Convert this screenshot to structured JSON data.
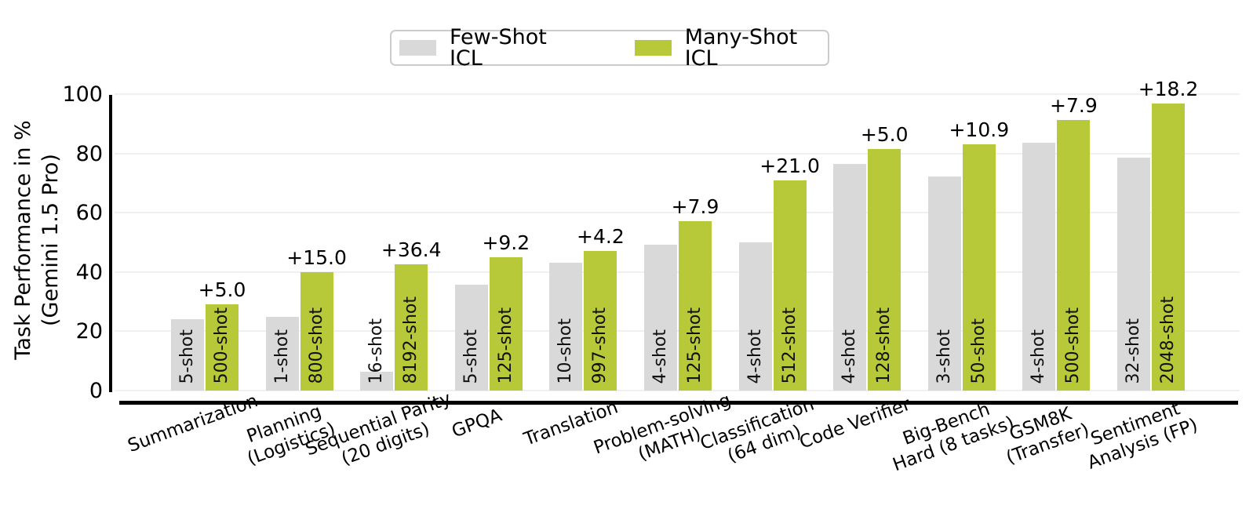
{
  "legend": {
    "items": [
      {
        "label": "Few-Shot ICL",
        "color": "#d9d9d9"
      },
      {
        "label": "Many-Shot ICL",
        "color": "#b7c838"
      }
    ]
  },
  "y_axis": {
    "label_line1": "Task Performance in %",
    "label_line2": "(Gemini 1.5 Pro)",
    "ticks": [
      "0",
      "20",
      "40",
      "60",
      "80",
      "100"
    ]
  },
  "colors": {
    "few_shot": "#d9d9d9",
    "many_shot": "#b7c838",
    "grid": "#f0f0f0",
    "axis": "#000000",
    "text": "#000000"
  },
  "chart_data": {
    "type": "bar",
    "title": "",
    "xlabel": "",
    "ylabel": "Task Performance in % (Gemini 1.5 Pro)",
    "ylim": [
      0,
      100
    ],
    "grid": true,
    "legend_position": "top-center",
    "series_names": [
      "Few-Shot ICL",
      "Many-Shot ICL"
    ],
    "categories": [
      "Summarization",
      "Planning (Logistics)",
      "Sequential Parity (20 digits)",
      "GPQA",
      "Translation",
      "Problem-solving (MATH)",
      "Classification (64 dim)",
      "Code Verifier",
      "Big-Bench Hard (8 tasks)",
      "GSM8K (Transfer)",
      "Sentiment Analysis (FP)"
    ],
    "groups": [
      {
        "category_lines": [
          "Summarization"
        ],
        "few": {
          "label": "5-shot",
          "value": 24.0
        },
        "many": {
          "label": "500-shot",
          "value": 29.0
        },
        "delta": "+5.0"
      },
      {
        "category_lines": [
          "Planning",
          "(Logistics)"
        ],
        "few": {
          "label": "1-shot",
          "value": 25.0
        },
        "many": {
          "label": "800-shot",
          "value": 40.0
        },
        "delta": "+15.0"
      },
      {
        "category_lines": [
          "Sequential Parity",
          "(20 digits)"
        ],
        "few": {
          "label": "16-shot",
          "value": 6.3
        },
        "many": {
          "label": "8192-shot",
          "value": 42.7
        },
        "delta": "+36.4"
      },
      {
        "category_lines": [
          "GPQA"
        ],
        "few": {
          "label": "5-shot",
          "value": 35.7
        },
        "many": {
          "label": "125-shot",
          "value": 44.9
        },
        "delta": "+9.2"
      },
      {
        "category_lines": [
          "Translation"
        ],
        "few": {
          "label": "10-shot",
          "value": 43.0
        },
        "many": {
          "label": "997-shot",
          "value": 47.2
        },
        "delta": "+4.2"
      },
      {
        "category_lines": [
          "Problem-solving",
          "(MATH)"
        ],
        "few": {
          "label": "4-shot",
          "value": 49.3
        },
        "many": {
          "label": "125-shot",
          "value": 57.2
        },
        "delta": "+7.9"
      },
      {
        "category_lines": [
          "Classification",
          "(64 dim)"
        ],
        "few": {
          "label": "4-shot",
          "value": 50.0
        },
        "many": {
          "label": "512-shot",
          "value": 71.0
        },
        "delta": "+21.0"
      },
      {
        "category_lines": [
          "Code Verifier"
        ],
        "few": {
          "label": "4-shot",
          "value": 76.5
        },
        "many": {
          "label": "128-shot",
          "value": 81.5
        },
        "delta": "+5.0"
      },
      {
        "category_lines": [
          "Big-Bench",
          "Hard (8 tasks)"
        ],
        "few": {
          "label": "3-shot",
          "value": 72.3
        },
        "many": {
          "label": "50-shot",
          "value": 83.2
        },
        "delta": "+10.9"
      },
      {
        "category_lines": [
          "GSM8K",
          "(Transfer)"
        ],
        "few": {
          "label": "4-shot",
          "value": 83.5
        },
        "many": {
          "label": "500-shot",
          "value": 91.4
        },
        "delta": "+7.9"
      },
      {
        "category_lines": [
          "Sentiment",
          "Analysis (FP)"
        ],
        "few": {
          "label": "32-shot",
          "value": 78.5
        },
        "many": {
          "label": "2048-shot",
          "value": 96.7
        },
        "delta": "+18.2"
      }
    ]
  }
}
